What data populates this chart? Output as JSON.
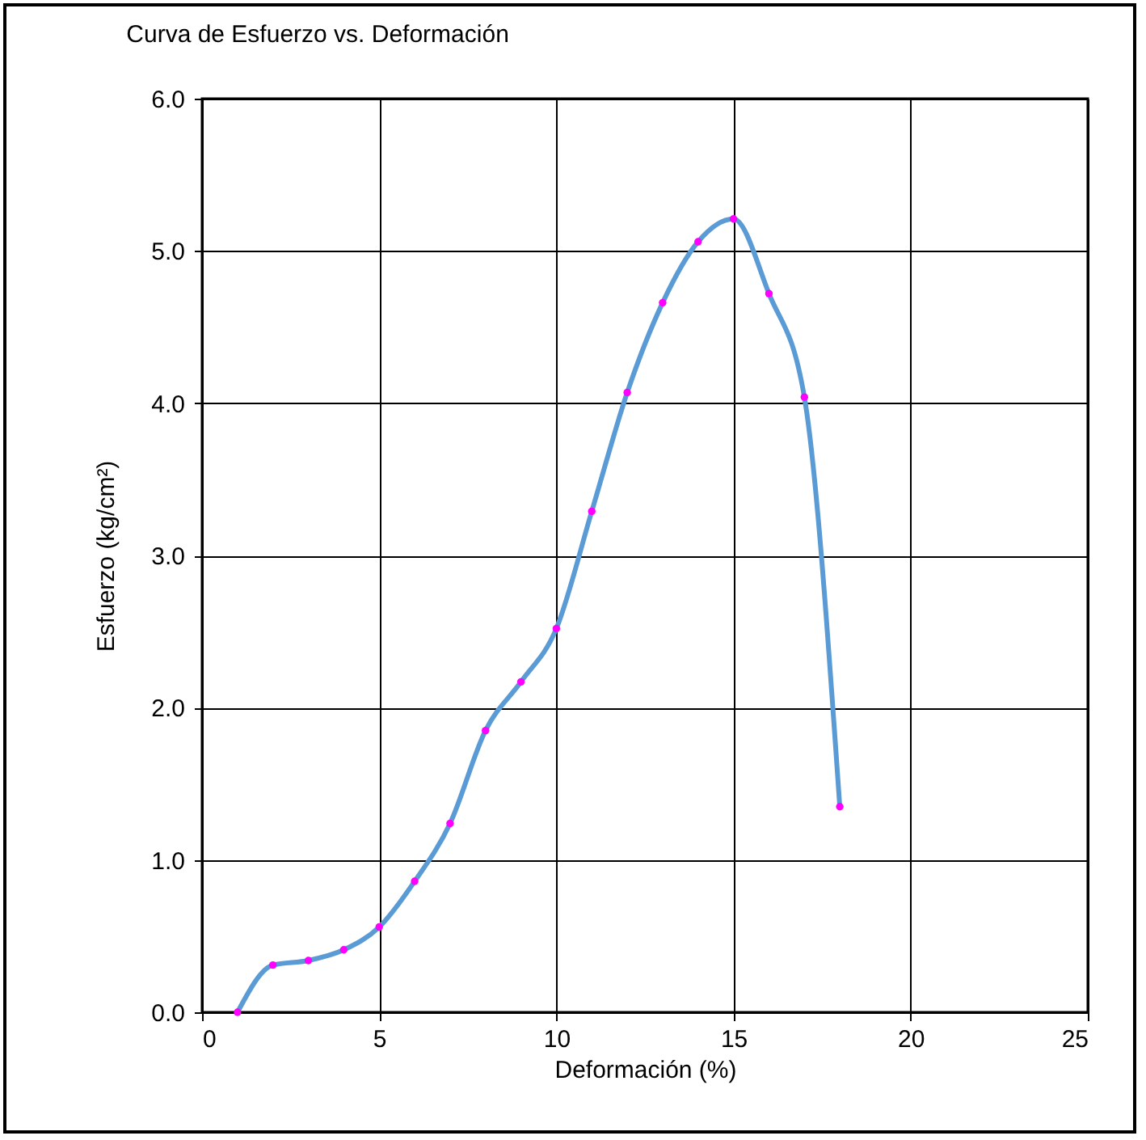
{
  "chart_data": {
    "type": "line",
    "title": "Curva de Esfuerzo vs. Deformación",
    "xlabel": "Deformación (%)",
    "ylabel": "Esfuerzo (kg/cm²)",
    "x": [
      1,
      2,
      3,
      4,
      5,
      6,
      7,
      8,
      9,
      10,
      11,
      12,
      13,
      14,
      15,
      16,
      17,
      18
    ],
    "series": [
      {
        "color": "#5b9bd5",
        "colors": [
          "#ff00ff",
          "#ff00ff",
          "#ff00ff",
          "#ff00ff",
          "#ff00ff",
          "#ff00ff",
          "#ff00ff",
          "#ff00ff",
          "#ff00ff",
          "#ff00ff",
          "#ff00ff",
          "#ff00ff",
          "#ff00ff",
          "#ff00ff",
          "#ff00ff",
          "#ff00ff",
          "#ff00ff",
          "#ff00ff"
        ],
        "values": [
          0.0,
          0.31,
          0.34,
          0.41,
          0.56,
          0.86,
          1.24,
          1.85,
          2.17,
          2.52,
          3.29,
          4.07,
          4.66,
          5.06,
          5.21,
          4.72,
          4.04,
          1.35
        ]
      }
    ],
    "xlim": [
      0,
      25
    ],
    "xticks": [
      0,
      5,
      10,
      15,
      20,
      25
    ],
    "ylim": [
      0,
      6
    ],
    "yticks": [
      {
        "value": 0,
        "label": "0.0"
      },
      {
        "value": 1,
        "label": "1.0"
      },
      {
        "value": 2,
        "label": "2.0"
      },
      {
        "value": 3,
        "label": "3.0"
      },
      {
        "value": 4,
        "label": "4.0"
      },
      {
        "value": 5,
        "label": "5.0"
      },
      {
        "value": 6,
        "label": "6.0"
      }
    ],
    "grid": true,
    "legend": false,
    "marker": "circle",
    "line_style": "solid"
  }
}
